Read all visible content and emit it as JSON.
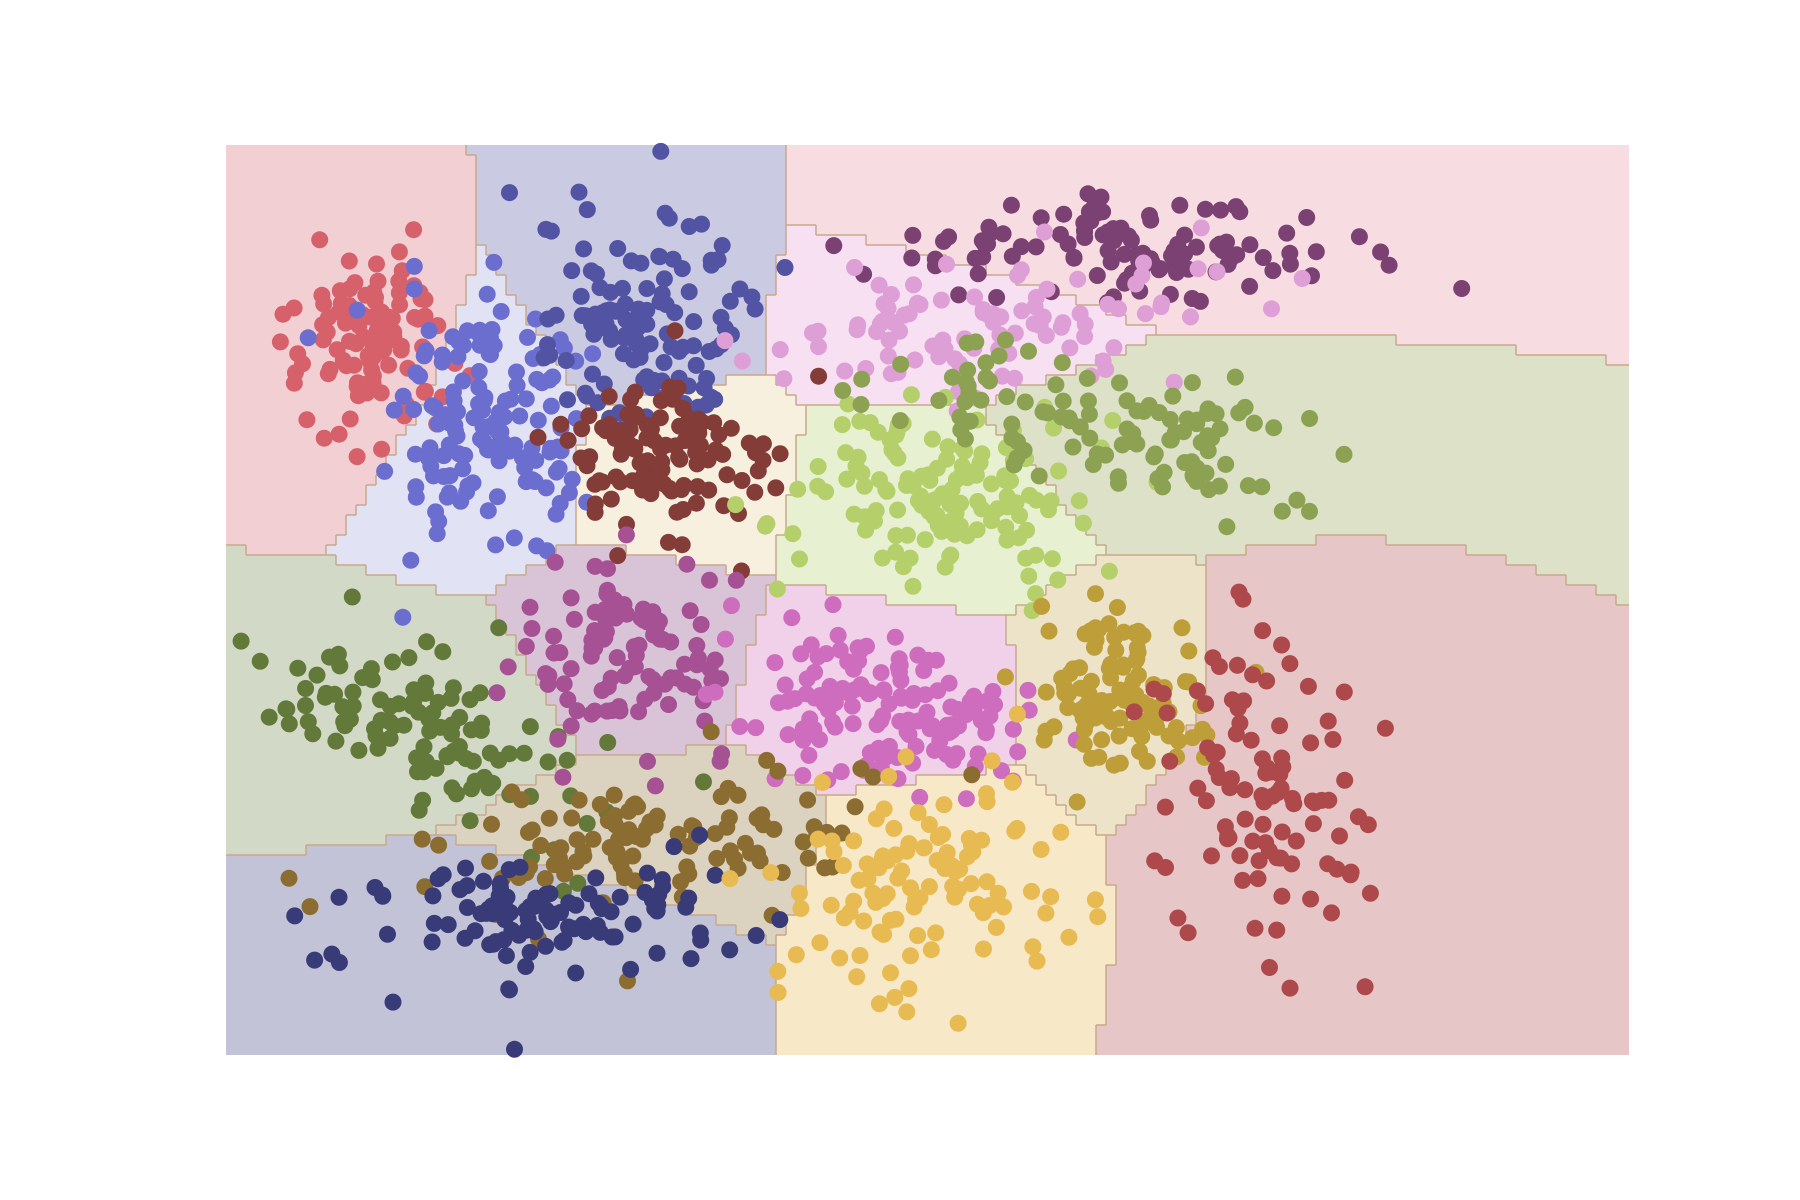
{
  "chart_data": {
    "type": "scatter",
    "title": "",
    "xlabel": "",
    "ylabel": "",
    "axes_visible": false,
    "grid": false,
    "legend": "none",
    "xlim": [
      0,
      12
    ],
    "ylim": [
      0,
      8
    ],
    "background": "decision-regions",
    "series": [
      {
        "cluster": 1,
        "color": "#d6616b",
        "region_color": "#f2cfd3",
        "center": [
          1.2,
          6.2
        ],
        "spread": [
          0.35,
          0.45
        ],
        "count": 110,
        "rotation": -10
      },
      {
        "cluster": 2,
        "color": "#6b6ecf",
        "region_color": "#e2e2f5",
        "center": [
          2.3,
          5.5
        ],
        "spread": [
          0.4,
          0.55
        ],
        "count": 140,
        "rotation": 0
      },
      {
        "cluster": 3,
        "color": "#5254a3",
        "region_color": "#cacae2",
        "center": [
          3.5,
          6.5
        ],
        "spread": [
          0.45,
          0.45
        ],
        "count": 120,
        "rotation": -25
      },
      {
        "cluster": 4,
        "color": "#843c39",
        "region_color": "#f8f0df",
        "center": [
          3.8,
          5.2
        ],
        "spread": [
          0.45,
          0.35
        ],
        "count": 110,
        "rotation": -10
      },
      {
        "cluster": 5,
        "color": "#7b4173",
        "region_color": "#f7dde2",
        "center": [
          7.6,
          7.1
        ],
        "spread": [
          1.1,
          0.25
        ],
        "count": 110,
        "rotation": 2
      },
      {
        "cluster": 6,
        "color": "#de9ed6",
        "region_color": "#f6e0f2",
        "center": [
          6.4,
          6.4
        ],
        "spread": [
          0.9,
          0.25
        ],
        "count": 100,
        "rotation": 4
      },
      {
        "cluster": 7,
        "color": "#b5cf6b",
        "region_color": "#e8f0d2",
        "center": [
          6.1,
          4.9
        ],
        "spread": [
          0.6,
          0.4
        ],
        "count": 140,
        "rotation": 0
      },
      {
        "cluster": 8,
        "color": "#8ca252",
        "region_color": "#dce1c8",
        "center": [
          7.8,
          5.5
        ],
        "spread": [
          0.9,
          0.3
        ],
        "count": 110,
        "rotation": -12
      },
      {
        "cluster": 9,
        "color": "#637939",
        "region_color": "#d3d9c7",
        "center": [
          1.8,
          2.9
        ],
        "spread": [
          0.75,
          0.35
        ],
        "count": 110,
        "rotation": -20
      },
      {
        "cluster": 10,
        "color": "#a55194",
        "region_color": "#d9c3d7",
        "center": [
          3.4,
          3.5
        ],
        "spread": [
          0.45,
          0.45
        ],
        "count": 100,
        "rotation": -20
      },
      {
        "cluster": 11,
        "color": "#ce6dbd",
        "region_color": "#f1d0ea",
        "center": [
          5.6,
          3.1
        ],
        "spread": [
          0.6,
          0.35
        ],
        "count": 140,
        "rotation": -12
      },
      {
        "cluster": 12,
        "color": "#bd9e39",
        "region_color": "#ece3c8",
        "center": [
          7.6,
          3.2
        ],
        "spread": [
          0.35,
          0.4
        ],
        "count": 110,
        "rotation": 25
      },
      {
        "cluster": 13,
        "color": "#ad494a",
        "region_color": "#e6c6c7",
        "center": [
          8.9,
          2.2
        ],
        "spread": [
          0.45,
          0.9
        ],
        "count": 100,
        "rotation": 10
      },
      {
        "cluster": 14,
        "color": "#8c6d31",
        "region_color": "#dcd2c0",
        "center": [
          3.6,
          1.9
        ],
        "spread": [
          1.0,
          0.3
        ],
        "count": 110,
        "rotation": 5
      },
      {
        "cluster": 15,
        "color": "#393b79",
        "region_color": "#c2c3d6",
        "center": [
          2.7,
          1.2
        ],
        "spread": [
          0.9,
          0.3
        ],
        "count": 110,
        "rotation": 5
      },
      {
        "cluster": 16,
        "color": "#e7ba52",
        "region_color": "#f7e8c8",
        "center": [
          6.0,
          1.6
        ],
        "spread": [
          0.55,
          0.45
        ],
        "count": 110,
        "rotation": 30
      }
    ]
  }
}
